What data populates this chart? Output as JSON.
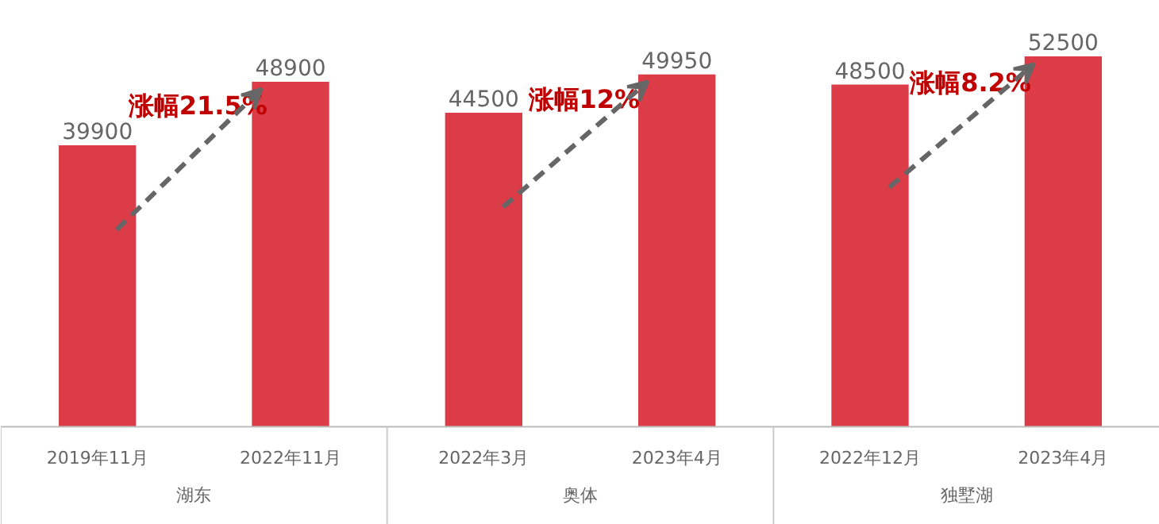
{
  "chart_data": {
    "type": "bar",
    "categories": [
      "2019年11月",
      "2022年11月",
      "2022年3月",
      "2023年4月",
      "2022年12月",
      "2023年4月"
    ],
    "values": [
      39900,
      48900,
      44500,
      49950,
      48500,
      52500
    ],
    "color": "#dc3c48",
    "data_labels": true,
    "annotations": [
      "涨幅21.5%",
      "涨幅12%",
      "涨幅8.2%",
      "湖东",
      "奥体",
      "独墅湖"
    ]
  }
}
